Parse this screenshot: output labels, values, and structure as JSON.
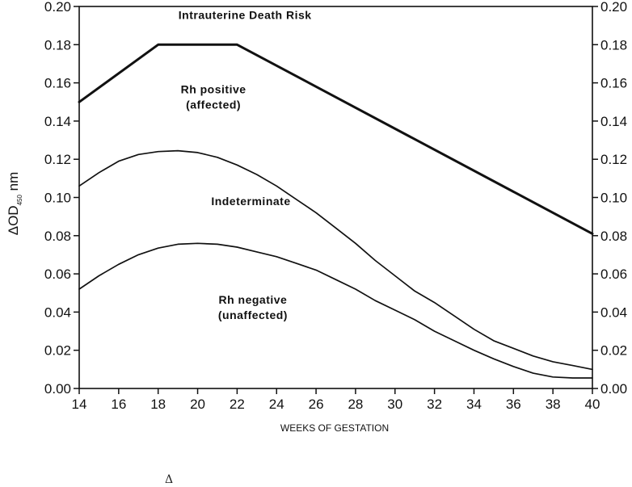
{
  "chart_data": {
    "type": "line",
    "title": "",
    "xlabel": "WEEKS OF GESTATION",
    "ylabel": {
      "prefix": "ΔOD",
      "sub": "450",
      "suffix": " nm"
    },
    "xlim": [
      14,
      40
    ],
    "ylim": [
      0,
      0.2
    ],
    "x_ticks": [
      "14",
      "16",
      "18",
      "20",
      "22",
      "24",
      "26",
      "28",
      "30",
      "32",
      "34",
      "36",
      "38",
      "40"
    ],
    "y_ticks": [
      "0.00",
      "0.02",
      "0.04",
      "0.06",
      "0.08",
      "0.10",
      "0.12",
      "0.14",
      "0.16",
      "0.18",
      "0.20"
    ],
    "grid": false,
    "right_axis_mirrored": true,
    "series": [
      {
        "style": "thick",
        "x": [
          14,
          18,
          22,
          40
        ],
        "y": [
          0.15,
          0.18,
          0.18,
          0.081
        ]
      },
      {
        "style": "thin",
        "x": [
          14,
          15,
          16,
          17,
          18,
          19,
          20,
          21,
          22,
          23,
          24,
          25,
          26,
          27,
          28,
          29,
          30,
          31,
          32,
          33,
          34,
          35,
          36,
          37,
          38,
          39,
          40
        ],
        "y": [
          0.106,
          0.113,
          0.119,
          0.1225,
          0.124,
          0.1245,
          0.1235,
          0.121,
          0.117,
          0.112,
          0.106,
          0.099,
          0.092,
          0.084,
          0.076,
          0.067,
          0.059,
          0.051,
          0.045,
          0.038,
          0.031,
          0.025,
          0.021,
          0.017,
          0.014,
          0.012,
          0.01
        ]
      },
      {
        "style": "thin",
        "x": [
          14,
          15,
          16,
          17,
          18,
          19,
          20,
          21,
          22,
          23,
          24,
          25,
          26,
          27,
          28,
          29,
          30,
          31,
          32,
          33,
          34,
          35,
          36,
          37,
          38,
          39,
          40
        ],
        "y": [
          0.052,
          0.059,
          0.065,
          0.07,
          0.0735,
          0.0755,
          0.076,
          0.0755,
          0.074,
          0.0715,
          0.069,
          0.0655,
          0.062,
          0.057,
          0.052,
          0.046,
          0.041,
          0.036,
          0.03,
          0.025,
          0.02,
          0.0155,
          0.0115,
          0.008,
          0.006,
          0.0055,
          0.0055
        ]
      }
    ],
    "annotations": [
      {
        "lines": [
          "Intrauterine Death Risk"
        ],
        "x": 22.4,
        "y": 0.1935
      },
      {
        "lines": [
          "Rh positive",
          "(affected)"
        ],
        "x": 20.8,
        "y": 0.1545
      },
      {
        "lines": [
          "Indeterminate"
        ],
        "x": 22.7,
        "y": 0.096
      },
      {
        "lines": [
          "Rh negative",
          "(unaffected)"
        ],
        "x": 22.8,
        "y": 0.0445
      }
    ]
  },
  "footer_glyph": "Δ"
}
